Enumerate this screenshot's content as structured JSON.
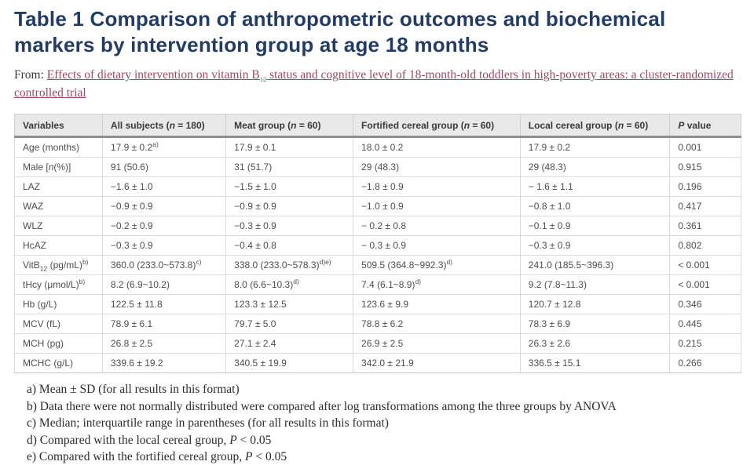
{
  "colors": {
    "title_color": "#233C63",
    "link_color": "#A04669",
    "header_bg_color": "#E9E9E9",
    "header_rule_color": "#8F8F8F",
    "body_text_color": "#4E4E4E"
  },
  "page": {
    "title": "Table 1 Comparison of anthropometric outcomes and biochemical markers by intervention group at age 18 months",
    "source_prefix": "From:",
    "source_link": "Effects of dietary intervention on vitamin B~~12~~ status and cognitive level of 18-month-old toddlers in high-poverty areas: a cluster-randomized controlled trial"
  },
  "table": {
    "headers": [
      "Variables",
      "All subjects (*n* = 180)",
      "Meat group (*n* = 60)",
      "Fortified cereal group (*n* = 60)",
      "Local cereal group (*n* = 60)",
      "*P* value"
    ],
    "rows": [
      [
        "Age (months)",
        "17.9 ± 0.2^a)^",
        "17.9 ± 0.1",
        "18.0 ± 0.2",
        "17.9 ± 0.2",
        "0.001"
      ],
      [
        "Male [*n*(%)]",
        "91 (50.6)",
        "31 (51.7)",
        "29 (48.3)",
        "29 (48.3)",
        "0.915"
      ],
      [
        "LAZ",
        "−1.6 ± 1.0",
        "−1.5 ± 1.0",
        "−1.8 ± 0.9",
        "− 1.6 ± 1.1",
        "0.196"
      ],
      [
        "WAZ",
        "−0.9 ± 0.9",
        "−0.9 ± 0.9",
        "−1.0 ± 0.9",
        "−0.8 ± 1.0",
        "0.417"
      ],
      [
        "WLZ",
        "−0.2 ± 0.9",
        "−0.3 ± 0.9",
        "− 0.2 ± 0.8",
        "−0.1 ± 0.9",
        "0.361"
      ],
      [
        "HcAZ",
        "−0.3 ± 0.9",
        "−0.4 ± 0.8",
        "− 0.3 ± 0.9",
        "−0.3 ± 0.9",
        "0.802"
      ],
      [
        "VitB~~12~~ (pg/mL)^b)^",
        "360.0 (233.0~573.8)^c)^",
        "338.0 (233.0~578.3)^d)e)^",
        "509.5 (364.8~992.3)^d)^",
        "241.0 (185.5~396.3)",
        "< 0.001"
      ],
      [
        "tHcy (μmol/L)^b)^",
        "8.2 (6.9~10.2)",
        "8.0 (6.6~10.3)^d)^",
        "7.4 (6.1~8.9)^d)^",
        "9.2 (7.8~11.3)",
        "< 0.001"
      ],
      [
        "Hb (g/L)",
        "122.5 ± 11.8",
        "123.3 ± 12.5",
        "123.6 ± 9.9",
        "120.7 ± 12.8",
        "0.346"
      ],
      [
        "MCV (fL)",
        "78.9 ± 6.1",
        "79.7 ± 5.0",
        "78.8 ± 6.2",
        "78.3 ± 6.9",
        "0.445"
      ],
      [
        "MCH (pg)",
        "26.8 ± 2.5",
        "27.1 ± 2.4",
        "26.9 ± 2.5",
        "26.3 ± 2.6",
        "0.215"
      ],
      [
        "MCHC (g/L)",
        "339.6 ± 19.2",
        "340.5 ± 19.9",
        "342.0 ± 21.9",
        "336.5 ± 15.1",
        "0.266"
      ]
    ]
  },
  "footnotes": [
    "a) Mean ± SD (for all results in this format)",
    "b) Data there were not normally distributed were compared after log transformations among the three groups by ANOVA",
    "c) Median; interquartile range in parentheses (for all results in this format)",
    "d) Compared with the local cereal group, *P* < 0.05",
    "e) Compared with the fortified cereal group, *P* < 0.05"
  ]
}
